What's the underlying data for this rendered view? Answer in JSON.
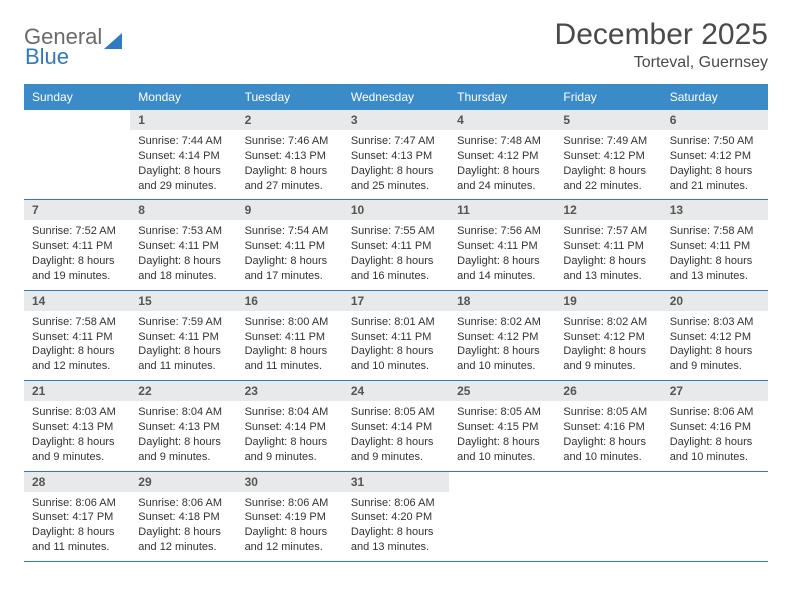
{
  "logo": {
    "text1": "General",
    "text2": "Blue"
  },
  "title": "December 2025",
  "location": "Torteval, Guernsey",
  "weekdays": [
    "Sunday",
    "Monday",
    "Tuesday",
    "Wednesday",
    "Thursday",
    "Friday",
    "Saturday"
  ],
  "colors": {
    "header_bg": "#3b8bc9",
    "row_border": "#2f7ac0",
    "daynum_bg": "#e8e9ea",
    "text": "#333333",
    "title_text": "#4a4a4a",
    "logo_gray": "#6a6a6a",
    "logo_blue": "#2f7ac0"
  },
  "weeks": [
    [
      {
        "n": "",
        "sunrise": "",
        "sunset": "",
        "daylight": "",
        "empty": true
      },
      {
        "n": "1",
        "sunrise": "Sunrise: 7:44 AM",
        "sunset": "Sunset: 4:14 PM",
        "daylight": "Daylight: 8 hours and 29 minutes."
      },
      {
        "n": "2",
        "sunrise": "Sunrise: 7:46 AM",
        "sunset": "Sunset: 4:13 PM",
        "daylight": "Daylight: 8 hours and 27 minutes."
      },
      {
        "n": "3",
        "sunrise": "Sunrise: 7:47 AM",
        "sunset": "Sunset: 4:13 PM",
        "daylight": "Daylight: 8 hours and 25 minutes."
      },
      {
        "n": "4",
        "sunrise": "Sunrise: 7:48 AM",
        "sunset": "Sunset: 4:12 PM",
        "daylight": "Daylight: 8 hours and 24 minutes."
      },
      {
        "n": "5",
        "sunrise": "Sunrise: 7:49 AM",
        "sunset": "Sunset: 4:12 PM",
        "daylight": "Daylight: 8 hours and 22 minutes."
      },
      {
        "n": "6",
        "sunrise": "Sunrise: 7:50 AM",
        "sunset": "Sunset: 4:12 PM",
        "daylight": "Daylight: 8 hours and 21 minutes."
      }
    ],
    [
      {
        "n": "7",
        "sunrise": "Sunrise: 7:52 AM",
        "sunset": "Sunset: 4:11 PM",
        "daylight": "Daylight: 8 hours and 19 minutes."
      },
      {
        "n": "8",
        "sunrise": "Sunrise: 7:53 AM",
        "sunset": "Sunset: 4:11 PM",
        "daylight": "Daylight: 8 hours and 18 minutes."
      },
      {
        "n": "9",
        "sunrise": "Sunrise: 7:54 AM",
        "sunset": "Sunset: 4:11 PM",
        "daylight": "Daylight: 8 hours and 17 minutes."
      },
      {
        "n": "10",
        "sunrise": "Sunrise: 7:55 AM",
        "sunset": "Sunset: 4:11 PM",
        "daylight": "Daylight: 8 hours and 16 minutes."
      },
      {
        "n": "11",
        "sunrise": "Sunrise: 7:56 AM",
        "sunset": "Sunset: 4:11 PM",
        "daylight": "Daylight: 8 hours and 14 minutes."
      },
      {
        "n": "12",
        "sunrise": "Sunrise: 7:57 AM",
        "sunset": "Sunset: 4:11 PM",
        "daylight": "Daylight: 8 hours and 13 minutes."
      },
      {
        "n": "13",
        "sunrise": "Sunrise: 7:58 AM",
        "sunset": "Sunset: 4:11 PM",
        "daylight": "Daylight: 8 hours and 13 minutes."
      }
    ],
    [
      {
        "n": "14",
        "sunrise": "Sunrise: 7:58 AM",
        "sunset": "Sunset: 4:11 PM",
        "daylight": "Daylight: 8 hours and 12 minutes."
      },
      {
        "n": "15",
        "sunrise": "Sunrise: 7:59 AM",
        "sunset": "Sunset: 4:11 PM",
        "daylight": "Daylight: 8 hours and 11 minutes."
      },
      {
        "n": "16",
        "sunrise": "Sunrise: 8:00 AM",
        "sunset": "Sunset: 4:11 PM",
        "daylight": "Daylight: 8 hours and 11 minutes."
      },
      {
        "n": "17",
        "sunrise": "Sunrise: 8:01 AM",
        "sunset": "Sunset: 4:11 PM",
        "daylight": "Daylight: 8 hours and 10 minutes."
      },
      {
        "n": "18",
        "sunrise": "Sunrise: 8:02 AM",
        "sunset": "Sunset: 4:12 PM",
        "daylight": "Daylight: 8 hours and 10 minutes."
      },
      {
        "n": "19",
        "sunrise": "Sunrise: 8:02 AM",
        "sunset": "Sunset: 4:12 PM",
        "daylight": "Daylight: 8 hours and 9 minutes."
      },
      {
        "n": "20",
        "sunrise": "Sunrise: 8:03 AM",
        "sunset": "Sunset: 4:12 PM",
        "daylight": "Daylight: 8 hours and 9 minutes."
      }
    ],
    [
      {
        "n": "21",
        "sunrise": "Sunrise: 8:03 AM",
        "sunset": "Sunset: 4:13 PM",
        "daylight": "Daylight: 8 hours and 9 minutes."
      },
      {
        "n": "22",
        "sunrise": "Sunrise: 8:04 AM",
        "sunset": "Sunset: 4:13 PM",
        "daylight": "Daylight: 8 hours and 9 minutes."
      },
      {
        "n": "23",
        "sunrise": "Sunrise: 8:04 AM",
        "sunset": "Sunset: 4:14 PM",
        "daylight": "Daylight: 8 hours and 9 minutes."
      },
      {
        "n": "24",
        "sunrise": "Sunrise: 8:05 AM",
        "sunset": "Sunset: 4:14 PM",
        "daylight": "Daylight: 8 hours and 9 minutes."
      },
      {
        "n": "25",
        "sunrise": "Sunrise: 8:05 AM",
        "sunset": "Sunset: 4:15 PM",
        "daylight": "Daylight: 8 hours and 10 minutes."
      },
      {
        "n": "26",
        "sunrise": "Sunrise: 8:05 AM",
        "sunset": "Sunset: 4:16 PM",
        "daylight": "Daylight: 8 hours and 10 minutes."
      },
      {
        "n": "27",
        "sunrise": "Sunrise: 8:06 AM",
        "sunset": "Sunset: 4:16 PM",
        "daylight": "Daylight: 8 hours and 10 minutes."
      }
    ],
    [
      {
        "n": "28",
        "sunrise": "Sunrise: 8:06 AM",
        "sunset": "Sunset: 4:17 PM",
        "daylight": "Daylight: 8 hours and 11 minutes."
      },
      {
        "n": "29",
        "sunrise": "Sunrise: 8:06 AM",
        "sunset": "Sunset: 4:18 PM",
        "daylight": "Daylight: 8 hours and 12 minutes."
      },
      {
        "n": "30",
        "sunrise": "Sunrise: 8:06 AM",
        "sunset": "Sunset: 4:19 PM",
        "daylight": "Daylight: 8 hours and 12 minutes."
      },
      {
        "n": "31",
        "sunrise": "Sunrise: 8:06 AM",
        "sunset": "Sunset: 4:20 PM",
        "daylight": "Daylight: 8 hours and 13 minutes."
      },
      {
        "n": "",
        "sunrise": "",
        "sunset": "",
        "daylight": "",
        "empty": true
      },
      {
        "n": "",
        "sunrise": "",
        "sunset": "",
        "daylight": "",
        "empty": true
      },
      {
        "n": "",
        "sunrise": "",
        "sunset": "",
        "daylight": "",
        "empty": true
      }
    ]
  ]
}
